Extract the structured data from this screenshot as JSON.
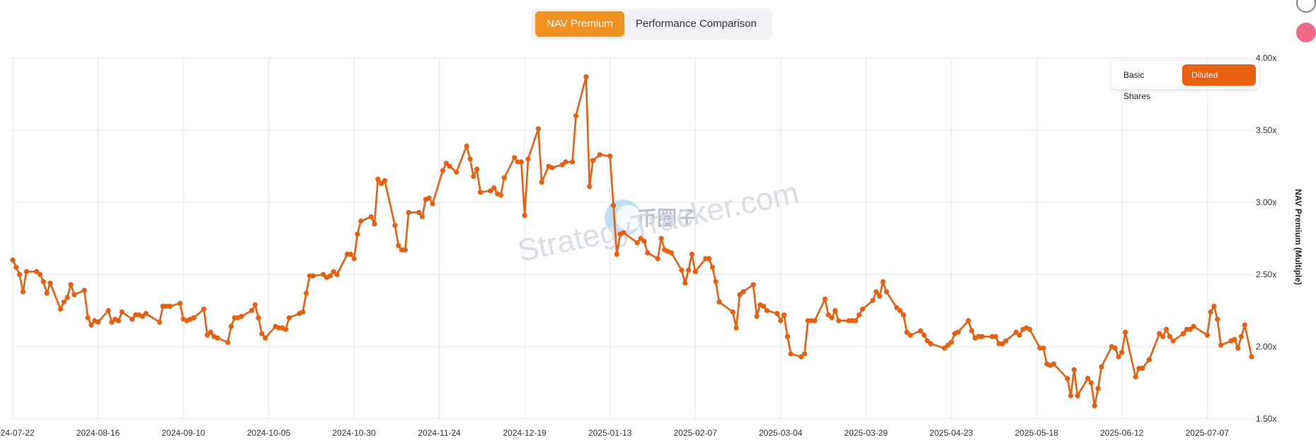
{
  "top_tabs": [
    {
      "label": "NAV Premium",
      "active": true
    },
    {
      "label": "Performance Comparison",
      "active": false
    }
  ],
  "share_options": [
    {
      "label": "Basic Shares",
      "active": false
    },
    {
      "label": "Diluted Shares",
      "active": true
    }
  ],
  "watermark": {
    "logo_text": "币圈子",
    "site_text": "StrategyTracker.com"
  },
  "colors": {
    "accent": "#f29222",
    "line": "#e8600f",
    "grid": "#e6e6e6"
  },
  "chart_data": {
    "type": "line",
    "title": "",
    "xlabel": "",
    "ylabel": "NAV Premium (Multiple)",
    "ylim": [
      1.5,
      4.0
    ],
    "yticks": [
      "1.50x",
      "2.00x",
      "2.50x",
      "3.00x",
      "3.50x",
      "4.00x"
    ],
    "xlim": [
      "2024-07-22",
      "2025-07-20"
    ],
    "xticks": [
      "2024-07-22",
      "2024-08-16",
      "2024-09-10",
      "2024-10-05",
      "2024-10-30",
      "2024-11-24",
      "2024-12-19",
      "2025-01-13",
      "2025-02-07",
      "2025-03-04",
      "2025-03-29",
      "2025-04-23",
      "2025-05-18",
      "2025-06-12",
      "2025-07-07"
    ],
    "grid": true,
    "legend": "none",
    "series": [
      {
        "values": [
          [
            "2024-07-22",
            2.6
          ],
          [
            "2024-07-23",
            2.55
          ],
          [
            "2024-07-24",
            2.5
          ],
          [
            "2024-07-25",
            2.38
          ],
          [
            "2024-07-26",
            2.52
          ],
          [
            "2024-07-29",
            2.52
          ],
          [
            "2024-07-30",
            2.5
          ],
          [
            "2024-07-31",
            2.45
          ],
          [
            "2024-08-01",
            2.37
          ],
          [
            "2024-08-02",
            2.44
          ],
          [
            "2024-08-05",
            2.26
          ],
          [
            "2024-08-06",
            2.31
          ],
          [
            "2024-08-07",
            2.34
          ],
          [
            "2024-08-08",
            2.43
          ],
          [
            "2024-08-09",
            2.36
          ],
          [
            "2024-08-12",
            2.39
          ],
          [
            "2024-08-13",
            2.2
          ],
          [
            "2024-08-14",
            2.15
          ],
          [
            "2024-08-15",
            2.18
          ],
          [
            "2024-08-16",
            2.17
          ],
          [
            "2024-08-19",
            2.25
          ],
          [
            "2024-08-20",
            2.17
          ],
          [
            "2024-08-21",
            2.19
          ],
          [
            "2024-08-22",
            2.18
          ],
          [
            "2024-08-23",
            2.24
          ],
          [
            "2024-08-26",
            2.19
          ],
          [
            "2024-08-27",
            2.22
          ],
          [
            "2024-08-28",
            2.22
          ],
          [
            "2024-08-29",
            2.21
          ],
          [
            "2024-08-30",
            2.23
          ],
          [
            "2024-09-03",
            2.17
          ],
          [
            "2024-09-04",
            2.28
          ],
          [
            "2024-09-05",
            2.28
          ],
          [
            "2024-09-06",
            2.28
          ],
          [
            "2024-09-09",
            2.3
          ],
          [
            "2024-09-10",
            2.19
          ],
          [
            "2024-09-11",
            2.18
          ],
          [
            "2024-09-12",
            2.19
          ],
          [
            "2024-09-13",
            2.2
          ],
          [
            "2024-09-16",
            2.26
          ],
          [
            "2024-09-17",
            2.08
          ],
          [
            "2024-09-18",
            2.1
          ],
          [
            "2024-09-19",
            2.07
          ],
          [
            "2024-09-20",
            2.06
          ],
          [
            "2024-09-23",
            2.03
          ],
          [
            "2024-09-24",
            2.14
          ],
          [
            "2024-09-25",
            2.2
          ],
          [
            "2024-09-26",
            2.2
          ],
          [
            "2024-09-27",
            2.21
          ],
          [
            "2024-09-30",
            2.25
          ],
          [
            "2024-10-01",
            2.29
          ],
          [
            "2024-10-02",
            2.2
          ],
          [
            "2024-10-03",
            2.09
          ],
          [
            "2024-10-04",
            2.06
          ],
          [
            "2024-10-07",
            2.14
          ],
          [
            "2024-10-08",
            2.13
          ],
          [
            "2024-10-09",
            2.13
          ],
          [
            "2024-10-10",
            2.12
          ],
          [
            "2024-10-11",
            2.2
          ],
          [
            "2024-10-14",
            2.23
          ],
          [
            "2024-10-15",
            2.24
          ],
          [
            "2024-10-16",
            2.37
          ],
          [
            "2024-10-17",
            2.49
          ],
          [
            "2024-10-18",
            2.49
          ],
          [
            "2024-10-21",
            2.5
          ],
          [
            "2024-10-22",
            2.48
          ],
          [
            "2024-10-23",
            2.49
          ],
          [
            "2024-10-24",
            2.52
          ],
          [
            "2024-10-25",
            2.5
          ],
          [
            "2024-10-28",
            2.64
          ],
          [
            "2024-10-29",
            2.64
          ],
          [
            "2024-10-30",
            2.61
          ],
          [
            "2024-10-31",
            2.78
          ],
          [
            "2024-11-01",
            2.87
          ],
          [
            "2024-11-04",
            2.9
          ],
          [
            "2024-11-05",
            2.85
          ],
          [
            "2024-11-06",
            3.16
          ],
          [
            "2024-11-07",
            3.13
          ],
          [
            "2024-11-08",
            3.15
          ],
          [
            "2024-11-11",
            2.84
          ],
          [
            "2024-11-12",
            2.7
          ],
          [
            "2024-11-13",
            2.67
          ],
          [
            "2024-11-14",
            2.67
          ],
          [
            "2024-11-15",
            2.93
          ],
          [
            "2024-11-18",
            2.93
          ],
          [
            "2024-11-19",
            2.9
          ],
          [
            "2024-11-20",
            3.02
          ],
          [
            "2024-11-21",
            3.03
          ],
          [
            "2024-11-22",
            2.99
          ],
          [
            "2024-11-25",
            3.22
          ],
          [
            "2024-11-26",
            3.27
          ],
          [
            "2024-11-27",
            3.25
          ],
          [
            "2024-11-29",
            3.21
          ],
          [
            "2024-12-02",
            3.39
          ],
          [
            "2024-12-03",
            3.3
          ],
          [
            "2024-12-04",
            3.18
          ],
          [
            "2024-12-05",
            3.23
          ],
          [
            "2024-12-06",
            3.07
          ],
          [
            "2024-12-09",
            3.08
          ],
          [
            "2024-12-10",
            3.1
          ],
          [
            "2024-12-11",
            3.06
          ],
          [
            "2024-12-12",
            3.05
          ],
          [
            "2024-12-13",
            3.17
          ],
          [
            "2024-12-16",
            3.31
          ],
          [
            "2024-12-17",
            3.28
          ],
          [
            "2024-12-18",
            3.28
          ],
          [
            "2024-12-19",
            2.91
          ],
          [
            "2024-12-20",
            3.3
          ],
          [
            "2024-12-23",
            3.51
          ],
          [
            "2024-12-24",
            3.14
          ],
          [
            "2024-12-26",
            3.25
          ],
          [
            "2024-12-27",
            3.24
          ],
          [
            "2024-12-30",
            3.26
          ],
          [
            "2024-12-31",
            3.28
          ],
          [
            "2025-01-02",
            3.28
          ],
          [
            "2025-01-03",
            3.6
          ],
          [
            "2025-01-06",
            3.87
          ],
          [
            "2025-01-07",
            3.11
          ],
          [
            "2025-01-08",
            3.29
          ],
          [
            "2025-01-10",
            3.33
          ],
          [
            "2025-01-13",
            3.32
          ],
          [
            "2025-01-14",
            2.98
          ],
          [
            "2025-01-15",
            2.64
          ],
          [
            "2025-01-16",
            2.78
          ],
          [
            "2025-01-17",
            2.79
          ],
          [
            "2025-01-21",
            2.72
          ],
          [
            "2025-01-22",
            2.75
          ],
          [
            "2025-01-23",
            2.73
          ],
          [
            "2025-01-24",
            2.65
          ],
          [
            "2025-01-27",
            2.61
          ],
          [
            "2025-01-28",
            2.75
          ],
          [
            "2025-01-29",
            2.67
          ],
          [
            "2025-01-30",
            2.66
          ],
          [
            "2025-01-31",
            2.65
          ],
          [
            "2025-02-03",
            2.53
          ],
          [
            "2025-02-04",
            2.44
          ],
          [
            "2025-02-05",
            2.53
          ],
          [
            "2025-02-06",
            2.64
          ],
          [
            "2025-02-07",
            2.52
          ],
          [
            "2025-02-10",
            2.61
          ],
          [
            "2025-02-11",
            2.61
          ],
          [
            "2025-02-12",
            2.55
          ],
          [
            "2025-02-13",
            2.45
          ],
          [
            "2025-02-14",
            2.31
          ],
          [
            "2025-02-18",
            2.24
          ],
          [
            "2025-02-19",
            2.13
          ],
          [
            "2025-02-20",
            2.36
          ],
          [
            "2025-02-21",
            2.38
          ],
          [
            "2025-02-24",
            2.43
          ],
          [
            "2025-02-25",
            2.21
          ],
          [
            "2025-02-26",
            2.29
          ],
          [
            "2025-02-27",
            2.28
          ],
          [
            "2025-02-28",
            2.25
          ],
          [
            "2025-03-03",
            2.23
          ],
          [
            "2025-03-04",
            2.18
          ],
          [
            "2025-03-05",
            2.22
          ],
          [
            "2025-03-06",
            2.07
          ],
          [
            "2025-03-07",
            1.95
          ],
          [
            "2025-03-10",
            1.93
          ],
          [
            "2025-03-11",
            1.95
          ],
          [
            "2025-03-12",
            2.18
          ],
          [
            "2025-03-13",
            2.18
          ],
          [
            "2025-03-14",
            2.18
          ],
          [
            "2025-03-17",
            2.33
          ],
          [
            "2025-03-18",
            2.22
          ],
          [
            "2025-03-19",
            2.2
          ],
          [
            "2025-03-20",
            2.25
          ],
          [
            "2025-03-21",
            2.18
          ],
          [
            "2025-03-24",
            2.18
          ],
          [
            "2025-03-25",
            2.18
          ],
          [
            "2025-03-26",
            2.18
          ],
          [
            "2025-03-27",
            2.22
          ],
          [
            "2025-03-28",
            2.26
          ],
          [
            "2025-03-31",
            2.32
          ],
          [
            "2025-04-01",
            2.38
          ],
          [
            "2025-04-02",
            2.35
          ],
          [
            "2025-04-03",
            2.45
          ],
          [
            "2025-04-04",
            2.38
          ],
          [
            "2025-04-07",
            2.27
          ],
          [
            "2025-04-08",
            2.25
          ],
          [
            "2025-04-09",
            2.22
          ],
          [
            "2025-04-10",
            2.1
          ],
          [
            "2025-04-11",
            2.08
          ],
          [
            "2025-04-14",
            2.11
          ],
          [
            "2025-04-15",
            2.08
          ],
          [
            "2025-04-16",
            2.04
          ],
          [
            "2025-04-17",
            2.02
          ],
          [
            "2025-04-21",
            1.99
          ],
          [
            "2025-04-22",
            2.01
          ],
          [
            "2025-04-23",
            2.03
          ],
          [
            "2025-04-24",
            2.09
          ],
          [
            "2025-04-25",
            2.1
          ],
          [
            "2025-04-28",
            2.18
          ],
          [
            "2025-04-29",
            2.11
          ],
          [
            "2025-04-30",
            2.06
          ],
          [
            "2025-05-01",
            2.07
          ],
          [
            "2025-05-02",
            2.07
          ],
          [
            "2025-05-05",
            2.07
          ],
          [
            "2025-05-06",
            2.07
          ],
          [
            "2025-05-07",
            2.02
          ],
          [
            "2025-05-08",
            2.02
          ],
          [
            "2025-05-09",
            2.04
          ],
          [
            "2025-05-12",
            2.1
          ],
          [
            "2025-05-13",
            2.08
          ],
          [
            "2025-05-14",
            2.12
          ],
          [
            "2025-05-15",
            2.13
          ],
          [
            "2025-05-16",
            2.12
          ],
          [
            "2025-05-19",
            1.99
          ],
          [
            "2025-05-20",
            1.99
          ],
          [
            "2025-05-21",
            1.88
          ],
          [
            "2025-05-22",
            1.87
          ],
          [
            "2025-05-23",
            1.88
          ],
          [
            "2025-05-27",
            1.78
          ],
          [
            "2025-05-28",
            1.66
          ],
          [
            "2025-05-29",
            1.84
          ],
          [
            "2025-05-30",
            1.66
          ],
          [
            "2025-06-02",
            1.78
          ],
          [
            "2025-06-03",
            1.75
          ],
          [
            "2025-06-04",
            1.59
          ],
          [
            "2025-06-05",
            1.71
          ],
          [
            "2025-06-06",
            1.86
          ],
          [
            "2025-06-09",
            2.0
          ],
          [
            "2025-06-10",
            1.99
          ],
          [
            "2025-06-11",
            1.93
          ],
          [
            "2025-06-12",
            1.96
          ],
          [
            "2025-06-13",
            2.1
          ],
          [
            "2025-06-16",
            1.79
          ],
          [
            "2025-06-17",
            1.85
          ],
          [
            "2025-06-18",
            1.85
          ],
          [
            "2025-06-20",
            1.91
          ],
          [
            "2025-06-23",
            2.09
          ],
          [
            "2025-06-24",
            2.07
          ],
          [
            "2025-06-25",
            2.12
          ],
          [
            "2025-06-26",
            2.07
          ],
          [
            "2025-06-27",
            2.04
          ],
          [
            "2025-06-30",
            2.09
          ],
          [
            "2025-07-01",
            2.12
          ],
          [
            "2025-07-02",
            2.12
          ],
          [
            "2025-07-03",
            2.14
          ],
          [
            "2025-07-07",
            2.08
          ],
          [
            "2025-07-08",
            2.24
          ],
          [
            "2025-07-09",
            2.28
          ],
          [
            "2025-07-10",
            2.19
          ],
          [
            "2025-07-11",
            2.01
          ],
          [
            "2025-07-14",
            2.04
          ],
          [
            "2025-07-15",
            2.05
          ],
          [
            "2025-07-16",
            1.99
          ],
          [
            "2025-07-17",
            2.07
          ],
          [
            "2025-07-18",
            2.15
          ],
          [
            "2025-07-20",
            1.93
          ]
        ]
      }
    ]
  }
}
